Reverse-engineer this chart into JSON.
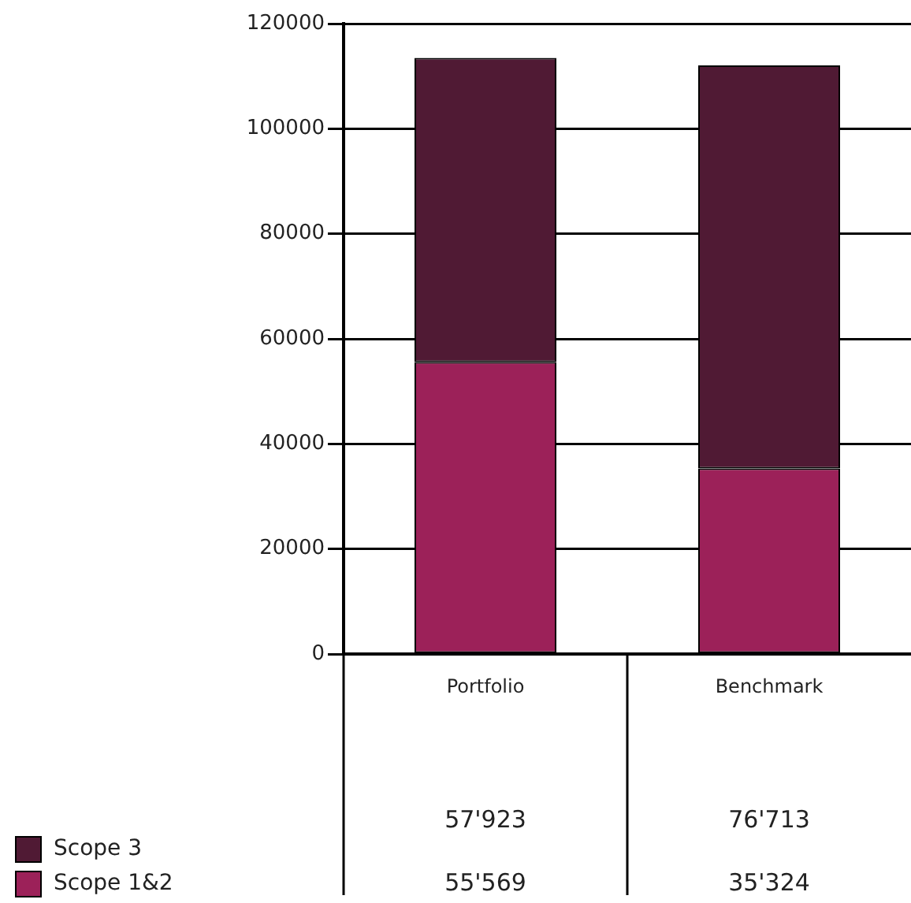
{
  "chart_data": {
    "type": "bar",
    "stacked": true,
    "categories": [
      "Portfolio",
      "Benchmark"
    ],
    "series": [
      {
        "name": "Scope 1&2",
        "color": "#9c2159",
        "values": [
          55569,
          35324
        ],
        "value_labels": [
          "55'569",
          "35'324"
        ]
      },
      {
        "name": "Scope 3",
        "color": "#501a34",
        "values": [
          57923,
          76713
        ],
        "value_labels": [
          "57'923",
          "76'713"
        ]
      }
    ],
    "ylim": [
      0,
      120000
    ],
    "yticks": [
      0,
      20000,
      40000,
      60000,
      80000,
      100000,
      120000
    ],
    "grid": "y",
    "legend": "bottom left"
  }
}
